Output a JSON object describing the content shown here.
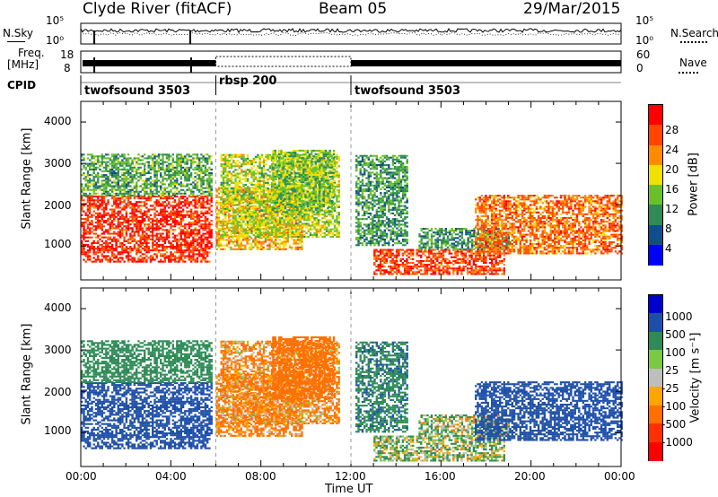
{
  "header": {
    "station": "Clyde River (fitACF)",
    "beam": "Beam 05",
    "date": "29/Mar/2015"
  },
  "top_panels": {
    "nsky_label": "N.Sky",
    "nsky_ticks": [
      "10^5",
      "10^0"
    ],
    "nsearch_label": "N.Search",
    "nsearch_ticks": [
      "10^5",
      "10^0"
    ],
    "freq_label": "Freq.",
    "freq_unit": "[MHz]",
    "freq_ticks": [
      "18",
      "8"
    ],
    "nave_label": "Nave",
    "nave_ticks": [
      "60",
      "0"
    ],
    "cpid_label": "CPID",
    "cpid_segments": [
      {
        "label": "twofsound 3503",
        "start_hour": 0,
        "end_hour": 6
      },
      {
        "label": "rbsp 200",
        "start_hour": 6,
        "end_hour": 12
      },
      {
        "label": "twofsound 3503",
        "start_hour": 12,
        "end_hour": 24
      }
    ]
  },
  "chart_data": [
    {
      "type": "heatmap",
      "panel": "power",
      "xlabel": "Time UT",
      "ylabel": "Slant Range [km]",
      "x_range_hours": [
        0,
        24
      ],
      "ylim": [
        180,
        4500
      ],
      "yticks": [
        "4000",
        "3000",
        "2000",
        "1000"
      ],
      "xticks": [
        "00:00",
        "04:00",
        "08:00",
        "12:00",
        "16:00",
        "20:00",
        "00:00"
      ],
      "colorbar_label": "Power [dB]",
      "colorbar_ticks": [
        "28",
        "24",
        "20",
        "16",
        "12",
        "8",
        "4"
      ],
      "colorbar_colors": [
        "#ff0000",
        "#ff4500",
        "#ff8c00",
        "#f0e000",
        "#6bc02a",
        "#2e8b57",
        "#104e8b",
        "#0000ff"
      ]
    },
    {
      "type": "heatmap",
      "panel": "velocity",
      "xlabel": "Time UT",
      "ylabel": "Slant Range [km]",
      "x_range_hours": [
        0,
        24
      ],
      "ylim": [
        180,
        4500
      ],
      "yticks": [
        "4000",
        "3000",
        "2000",
        "1000"
      ],
      "xticks": [
        "00:00",
        "04:00",
        "08:00",
        "12:00",
        "16:00",
        "20:00",
        "00:00"
      ],
      "colorbar_label": "Velocity [m s⁻¹]",
      "colorbar_ticks": [
        "1000",
        "500",
        "100",
        "25",
        "-25",
        "-100",
        "-500",
        "-1000"
      ],
      "colorbar_colors": [
        "#0000cd",
        "#1e4fa8",
        "#2e8b57",
        "#7ac943",
        "#bebebe",
        "#ffa500",
        "#ff7000",
        "#ff3000",
        "#ff0000"
      ]
    }
  ]
}
